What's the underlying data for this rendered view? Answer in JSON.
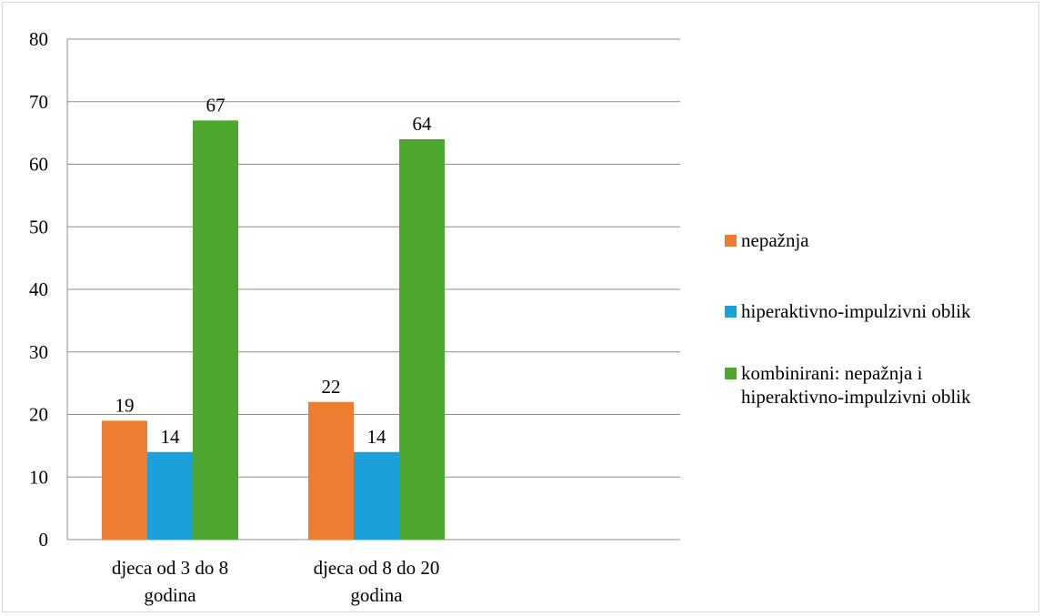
{
  "chart_data": {
    "type": "bar",
    "categories": [
      [
        "djeca od 3 do 8",
        "godina"
      ],
      [
        "djeca od 8 do 20",
        "godina"
      ]
    ],
    "series": [
      {
        "name": "nepažnja",
        "color": "#ED7D31",
        "values": [
          19,
          22
        ]
      },
      {
        "name": "hiperaktivno-impulzivni oblik",
        "color": "#1BA1D9",
        "values": [
          14,
          14
        ]
      },
      {
        "name": [
          "kombinirani: nepažnja i",
          "hiperaktivno-impulzivni oblik"
        ],
        "color": "#4EA72E",
        "values": [
          67,
          64
        ]
      }
    ],
    "ylim": [
      0,
      80
    ],
    "yticks": [
      0,
      10,
      20,
      30,
      40,
      50,
      60,
      70,
      80
    ],
    "grid": true,
    "legend_position": "right",
    "data_labels": true
  }
}
